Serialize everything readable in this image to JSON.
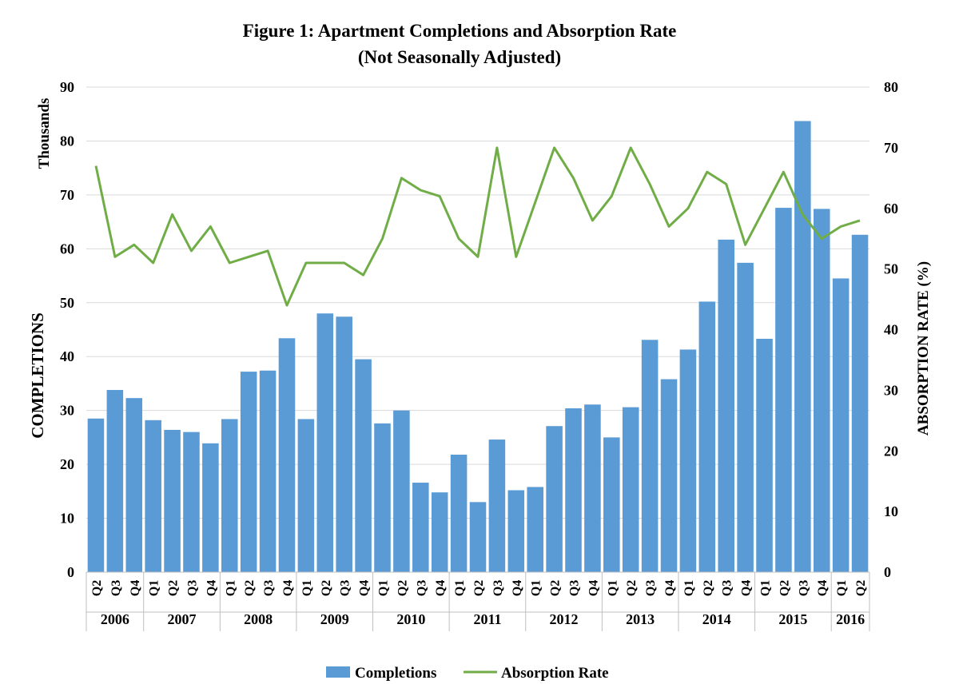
{
  "title_line1": "Figure 1: Apartment  Completions and Absorption Rate",
  "title_line2": "(Not Seasonally Adjusted)",
  "chart_data": {
    "type": "bar",
    "title": "Figure 1: Apartment  Completions and Absorption Rate (Not Seasonally Adjusted)",
    "ylabel_left": "COMPLETIONS",
    "ylabel_left_units": "Thousands",
    "ylabel_right": "ABSORPTION RATE (%)",
    "ylim_left": [
      0,
      90
    ],
    "ylim_right": [
      0,
      80
    ],
    "yticks_left": [
      0,
      10,
      20,
      30,
      40,
      50,
      60,
      70,
      80,
      90
    ],
    "yticks_right": [
      0,
      10,
      20,
      30,
      40,
      50,
      60,
      70,
      80
    ],
    "grid": true,
    "legend_position": "bottom",
    "years": [
      {
        "year": "2006",
        "quarters": [
          "Q2",
          "Q3",
          "Q4"
        ]
      },
      {
        "year": "2007",
        "quarters": [
          "Q1",
          "Q2",
          "Q3",
          "Q4"
        ]
      },
      {
        "year": "2008",
        "quarters": [
          "Q1",
          "Q2",
          "Q3",
          "Q4"
        ]
      },
      {
        "year": "2009",
        "quarters": [
          "Q1",
          "Q2",
          "Q3",
          "Q4"
        ]
      },
      {
        "year": "2010",
        "quarters": [
          "Q1",
          "Q2",
          "Q3",
          "Q4"
        ]
      },
      {
        "year": "2011",
        "quarters": [
          "Q1",
          "Q2",
          "Q3",
          "Q4"
        ]
      },
      {
        "year": "2012",
        "quarters": [
          "Q1",
          "Q2",
          "Q3",
          "Q4"
        ]
      },
      {
        "year": "2013",
        "quarters": [
          "Q1",
          "Q2",
          "Q3",
          "Q4"
        ]
      },
      {
        "year": "2014",
        "quarters": [
          "Q1",
          "Q2",
          "Q3",
          "Q4"
        ]
      },
      {
        "year": "2015",
        "quarters": [
          "Q1",
          "Q2",
          "Q3",
          "Q4"
        ]
      },
      {
        "year": "2016",
        "quarters": [
          "Q1",
          "Q2"
        ]
      }
    ],
    "series": [
      {
        "name": "Completions",
        "type": "bar",
        "axis": "left",
        "color": "#5b9bd5",
        "values": [
          28.5,
          33.8,
          32.3,
          28.2,
          26.4,
          26.0,
          23.9,
          28.4,
          37.2,
          37.4,
          43.4,
          28.4,
          48.0,
          47.4,
          39.5,
          27.6,
          30.0,
          16.6,
          14.8,
          21.8,
          13.0,
          24.6,
          15.2,
          15.8,
          27.1,
          30.4,
          31.1,
          25.0,
          30.6,
          43.1,
          35.8,
          41.3,
          50.2,
          61.7,
          57.4,
          43.3,
          67.6,
          83.7,
          67.4,
          54.5,
          62.6
        ]
      },
      {
        "name": "Absorption Rate",
        "type": "line",
        "axis": "right",
        "color": "#70ad47",
        "values": [
          67,
          52,
          54,
          51,
          59,
          53,
          57,
          51,
          52,
          53,
          44,
          51,
          51,
          51,
          49,
          55,
          65,
          63,
          62,
          55,
          52,
          70,
          52,
          61,
          70,
          65,
          58,
          62,
          70,
          64,
          57,
          60,
          66,
          64,
          54,
          60,
          66,
          59,
          55,
          57,
          58
        ]
      }
    ]
  }
}
